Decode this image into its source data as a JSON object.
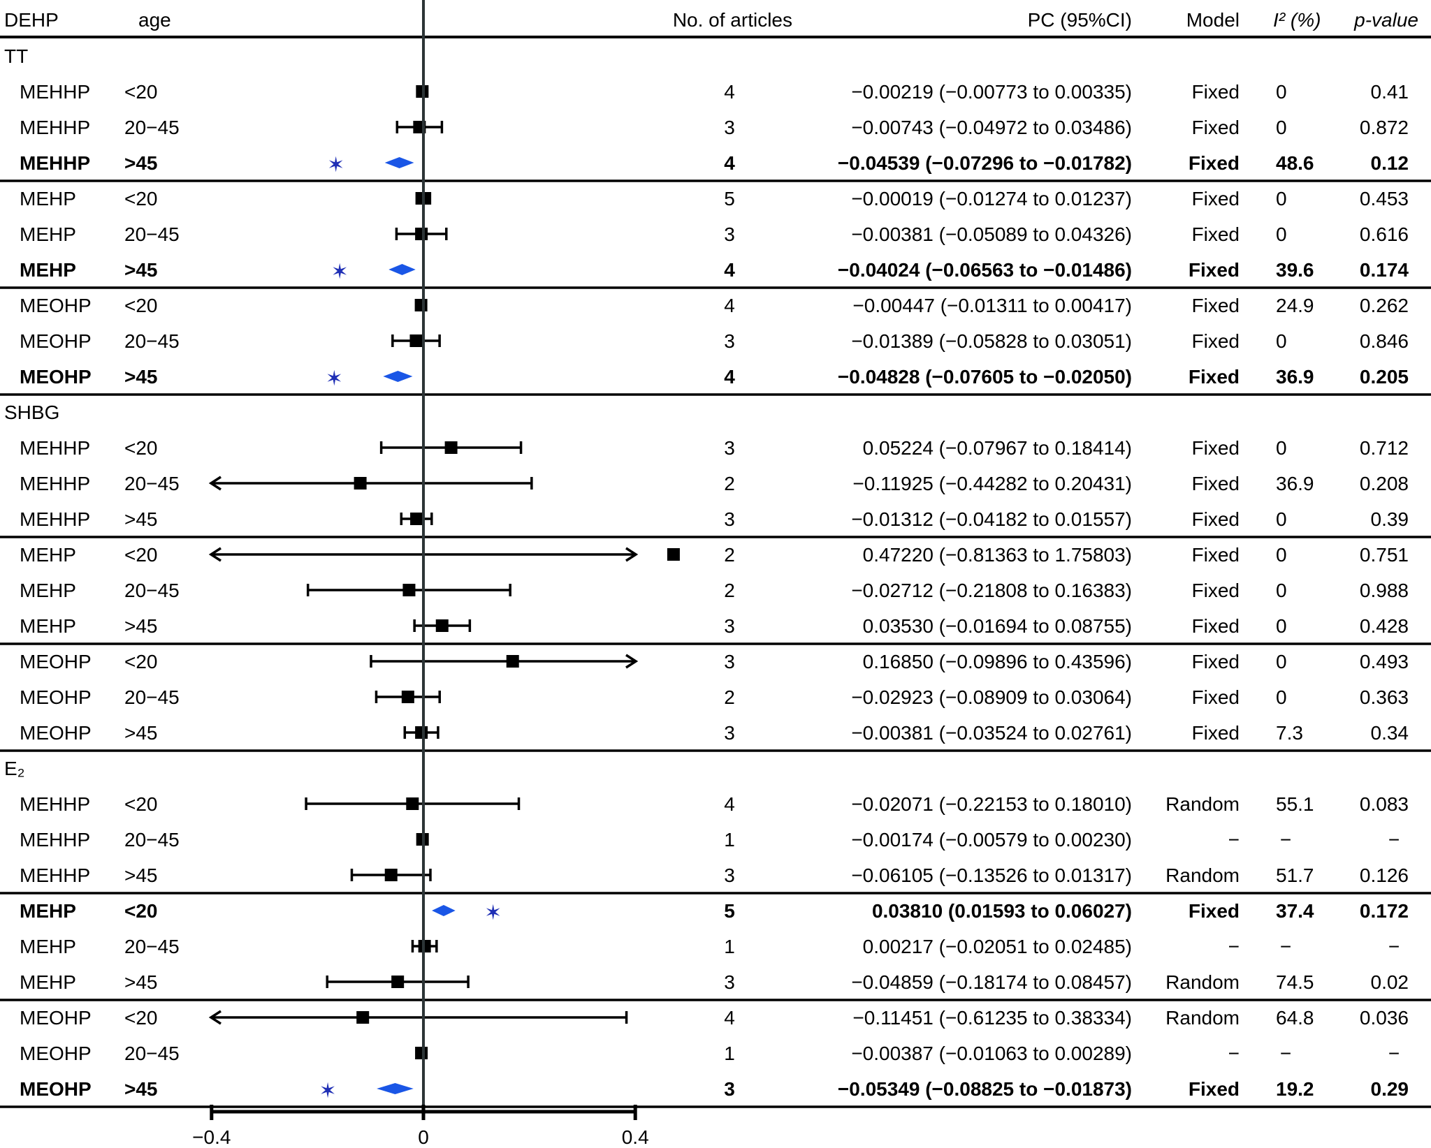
{
  "chart_data": {
    "type": "forest",
    "headers": {
      "dehp": "DEHP",
      "age": "age",
      "articles": "No. of articles",
      "pc": "PC (95%CI)",
      "model": "Model",
      "i2": "I² (%)",
      "pvalue": "p-value"
    },
    "xlim": [
      -0.4,
      0.4
    ],
    "xticks": [
      -0.4,
      0,
      0.4
    ],
    "xtick_labels": [
      "−0.4",
      "0",
      "0.4"
    ],
    "colors": {
      "marker": "#000000",
      "significant": "#1a56e6",
      "star": "#1f2fb5"
    },
    "groups": [
      {
        "name": "TT",
        "rows": [
          {
            "dehp": "MEHHP",
            "age": "<20",
            "n": "4",
            "pc": "−0.00219 (−0.00773 to 0.00335)",
            "model": "Fixed",
            "i2": "0",
            "p": "0.41",
            "est": -0.00219,
            "lo": -0.00773,
            "hi": 0.00335,
            "sig": false
          },
          {
            "dehp": "MEHHP",
            "age": "20−45",
            "n": "3",
            "pc": "−0.00743 (−0.04972 to 0.03486)",
            "model": "Fixed",
            "i2": "0",
            "p": "0.872",
            "est": -0.00743,
            "lo": -0.04972,
            "hi": 0.03486,
            "sig": false
          },
          {
            "dehp": "MEHHP",
            "age": ">45",
            "n": "4",
            "pc": "−0.04539 (−0.07296 to −0.01782)",
            "model": "Fixed",
            "i2": "48.6",
            "p": "0.12",
            "est": -0.04539,
            "lo": -0.07296,
            "hi": -0.01782,
            "sig": true,
            "sep": true
          },
          {
            "dehp": "MEHP",
            "age": "<20",
            "n": "5",
            "pc": "−0.00019 (−0.01274 to 0.01237)",
            "model": "Fixed",
            "i2": "0",
            "p": "0.453",
            "est": -0.00019,
            "lo": -0.01274,
            "hi": 0.01237,
            "sig": false
          },
          {
            "dehp": "MEHP",
            "age": "20−45",
            "n": "3",
            "pc": "−0.00381 (−0.05089 to 0.04326)",
            "model": "Fixed",
            "i2": "0",
            "p": "0.616",
            "est": -0.00381,
            "lo": -0.05089,
            "hi": 0.04326,
            "sig": false
          },
          {
            "dehp": "MEHP",
            "age": ">45",
            "n": "4",
            "pc": "−0.04024 (−0.06563 to −0.01486)",
            "model": "Fixed",
            "i2": "39.6",
            "p": "0.174",
            "est": -0.04024,
            "lo": -0.06563,
            "hi": -0.01486,
            "sig": true,
            "sep": true
          },
          {
            "dehp": "MEOHP",
            "age": "<20",
            "n": "4",
            "pc": "−0.00447 (−0.01311 to 0.00417)",
            "model": "Fixed",
            "i2": "24.9",
            "p": "0.262",
            "est": -0.00447,
            "lo": -0.01311,
            "hi": 0.00417,
            "sig": false
          },
          {
            "dehp": "MEOHP",
            "age": "20−45",
            "n": "3",
            "pc": "−0.01389 (−0.05828 to 0.03051)",
            "model": "Fixed",
            "i2": "0",
            "p": "0.846",
            "est": -0.01389,
            "lo": -0.05828,
            "hi": 0.03051,
            "sig": false
          },
          {
            "dehp": "MEOHP",
            "age": ">45",
            "n": "4",
            "pc": "−0.04828 (−0.07605 to −0.02050)",
            "model": "Fixed",
            "i2": "36.9",
            "p": "0.205",
            "est": -0.04828,
            "lo": -0.07605,
            "hi": -0.0205,
            "sig": true,
            "sep": true
          }
        ]
      },
      {
        "name": "SHBG",
        "rows": [
          {
            "dehp": "MEHHP",
            "age": "<20",
            "n": "3",
            "pc": "0.05224 (−0.07967 to 0.18414)",
            "model": "Fixed",
            "i2": "0",
            "p": "0.712",
            "est": 0.05224,
            "lo": -0.07967,
            "hi": 0.18414,
            "sig": false
          },
          {
            "dehp": "MEHHP",
            "age": "20−45",
            "n": "2",
            "pc": "−0.11925 (−0.44282 to 0.20431)",
            "model": "Fixed",
            "i2": "36.9",
            "p": "0.208",
            "est": -0.11925,
            "lo": -0.44282,
            "hi": 0.20431,
            "sig": false
          },
          {
            "dehp": "MEHHP",
            "age": ">45",
            "n": "3",
            "pc": "−0.01312 (−0.04182 to 0.01557)",
            "model": "Fixed",
            "i2": "0",
            "p": "0.39",
            "est": -0.01312,
            "lo": -0.04182,
            "hi": 0.01557,
            "sig": false,
            "sep": true
          },
          {
            "dehp": "MEHP",
            "age": "<20",
            "n": "2",
            "pc": "0.47220 (−0.81363 to 1.75803)",
            "model": "Fixed",
            "i2": "0",
            "p": "0.751",
            "est": 0.4722,
            "lo": -0.81363,
            "hi": 1.75803,
            "sig": false
          },
          {
            "dehp": "MEHP",
            "age": "20−45",
            "n": "2",
            "pc": "−0.02712 (−0.21808 to 0.16383)",
            "model": "Fixed",
            "i2": "0",
            "p": "0.988",
            "est": -0.02712,
            "lo": -0.21808,
            "hi": 0.16383,
            "sig": false
          },
          {
            "dehp": "MEHP",
            "age": ">45",
            "n": "3",
            "pc": "0.03530 (−0.01694 to 0.08755)",
            "model": "Fixed",
            "i2": "0",
            "p": "0.428",
            "est": 0.0353,
            "lo": -0.01694,
            "hi": 0.08755,
            "sig": false,
            "sep": true
          },
          {
            "dehp": "MEOHP",
            "age": "<20",
            "n": "3",
            "pc": "0.16850 (−0.09896 to 0.43596)",
            "model": "Fixed",
            "i2": "0",
            "p": "0.493",
            "est": 0.1685,
            "lo": -0.09896,
            "hi": 0.43596,
            "sig": false
          },
          {
            "dehp": "MEOHP",
            "age": "20−45",
            "n": "2",
            "pc": "−0.02923 (−0.08909 to 0.03064)",
            "model": "Fixed",
            "i2": "0",
            "p": "0.363",
            "est": -0.02923,
            "lo": -0.08909,
            "hi": 0.03064,
            "sig": false
          },
          {
            "dehp": "MEOHP",
            "age": ">45",
            "n": "3",
            "pc": "−0.00381 (−0.03524 to 0.02761)",
            "model": "Fixed",
            "i2": "7.3",
            "p": "0.34",
            "est": -0.00381,
            "lo": -0.03524,
            "hi": 0.02761,
            "sig": false,
            "sep": true
          }
        ]
      },
      {
        "name": "E₂",
        "rows": [
          {
            "dehp": "MEHHP",
            "age": "<20",
            "n": "4",
            "pc": "−0.02071 (−0.22153 to 0.18010)",
            "model": "Random",
            "i2": "55.1",
            "p": "0.083",
            "est": -0.02071,
            "lo": -0.22153,
            "hi": 0.1801,
            "sig": false
          },
          {
            "dehp": "MEHHP",
            "age": "20−45",
            "n": "1",
            "pc": "−0.00174 (−0.00579 to 0.00230)",
            "model": "−",
            "i2": "−",
            "p": "−",
            "est": -0.00174,
            "lo": -0.00579,
            "hi": 0.0023,
            "sig": false
          },
          {
            "dehp": "MEHHP",
            "age": ">45",
            "n": "3",
            "pc": "−0.06105 (−0.13526 to 0.01317)",
            "model": "Random",
            "i2": "51.7",
            "p": "0.126",
            "est": -0.06105,
            "lo": -0.13526,
            "hi": 0.01317,
            "sig": false,
            "sep": true
          },
          {
            "dehp": "MEHP",
            "age": "<20",
            "n": "5",
            "pc": "0.03810 (0.01593 to 0.06027)",
            "model": "Fixed",
            "i2": "37.4",
            "p": "0.172",
            "est": 0.0381,
            "lo": 0.01593,
            "hi": 0.06027,
            "sig": true
          },
          {
            "dehp": "MEHP",
            "age": "20−45",
            "n": "1",
            "pc": "0.00217 (−0.02051 to 0.02485)",
            "model": "−",
            "i2": "−",
            "p": "−",
            "est": 0.00217,
            "lo": -0.02051,
            "hi": 0.02485,
            "sig": false
          },
          {
            "dehp": "MEHP",
            "age": ">45",
            "n": "3",
            "pc": "−0.04859 (−0.18174 to 0.08457)",
            "model": "Random",
            "i2": "74.5",
            "p": "0.02",
            "est": -0.04859,
            "lo": -0.18174,
            "hi": 0.08457,
            "sig": false,
            "sep": true
          },
          {
            "dehp": "MEOHP",
            "age": "<20",
            "n": "4",
            "pc": "−0.11451 (−0.61235 to 0.38334)",
            "model": "Random",
            "i2": "64.8",
            "p": "0.036",
            "est": -0.11451,
            "lo": -0.61235,
            "hi": 0.38334,
            "sig": false
          },
          {
            "dehp": "MEOHP",
            "age": "20−45",
            "n": "1",
            "pc": "−0.00387 (−0.01063 to 0.00289)",
            "model": "−",
            "i2": "−",
            "p": "−",
            "est": -0.00387,
            "lo": -0.01063,
            "hi": 0.00289,
            "sig": false
          },
          {
            "dehp": "MEOHP",
            "age": ">45",
            "n": "3",
            "pc": "−0.05349 (−0.08825 to −0.01873)",
            "model": "Fixed",
            "i2": "19.2",
            "p": "0.29",
            "est": -0.05349,
            "lo": -0.08825,
            "hi": -0.01873,
            "sig": true,
            "sep": true
          }
        ]
      }
    ]
  }
}
